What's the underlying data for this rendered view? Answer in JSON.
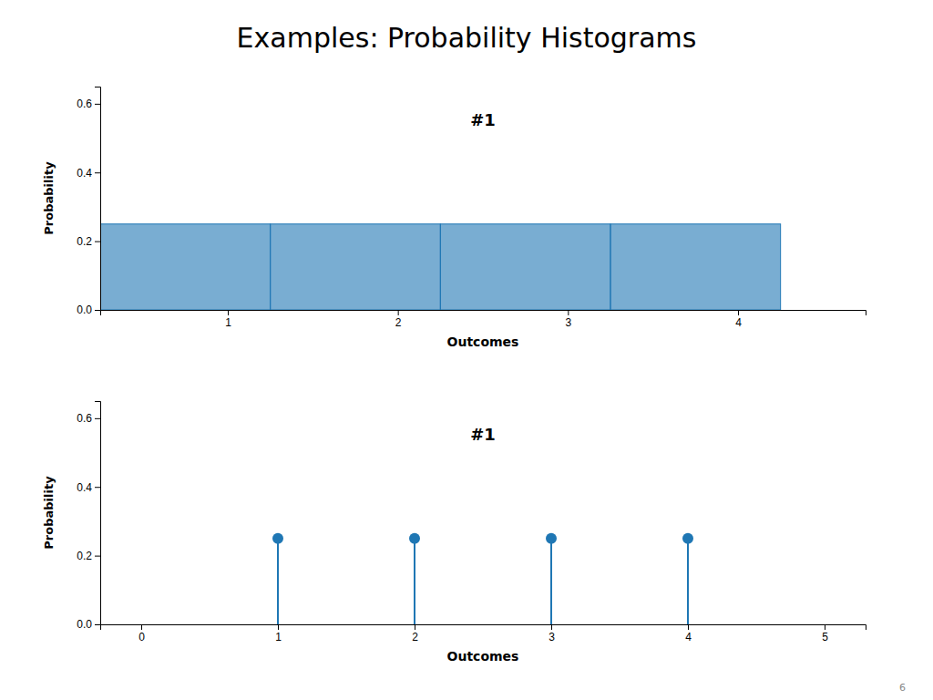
{
  "title": "Examples: Probability Histograms",
  "annotations": [
    "6"
  ],
  "chart_data": [
    {
      "type": "histogram",
      "bins": [
        0.25,
        1.25,
        2.25,
        3.25,
        4.25
      ],
      "values": [
        0.25,
        0.25,
        0.25,
        0.25
      ],
      "xlim": [
        0.25,
        4.75
      ],
      "ylim": [
        0,
        0.65
      ],
      "xticks": [
        1,
        2,
        3,
        4
      ],
      "yticks": [
        {
          "value": 0,
          "label": "0.0"
        },
        0.2,
        0.4,
        0.6
      ],
      "x_label": "Outcomes",
      "y_label": "Probability",
      "annotations": [
        "#1"
      ],
      "grid": false
    },
    {
      "type": "lollipop",
      "x": [
        1,
        2,
        3,
        4
      ],
      "values": [
        0.25,
        0.25,
        0.25,
        0.25
      ],
      "xlim": [
        -0.3,
        5.3
      ],
      "ylim": [
        0,
        0.65
      ],
      "xticks": [
        0,
        1,
        2,
        3,
        4,
        5
      ],
      "yticks": [
        {
          "value": 0,
          "label": "0.0"
        },
        0.2,
        0.4,
        0.6
      ],
      "x_label": "Outcomes",
      "y_label": "Probability",
      "annotations": [
        "#1"
      ],
      "grid": false
    }
  ]
}
